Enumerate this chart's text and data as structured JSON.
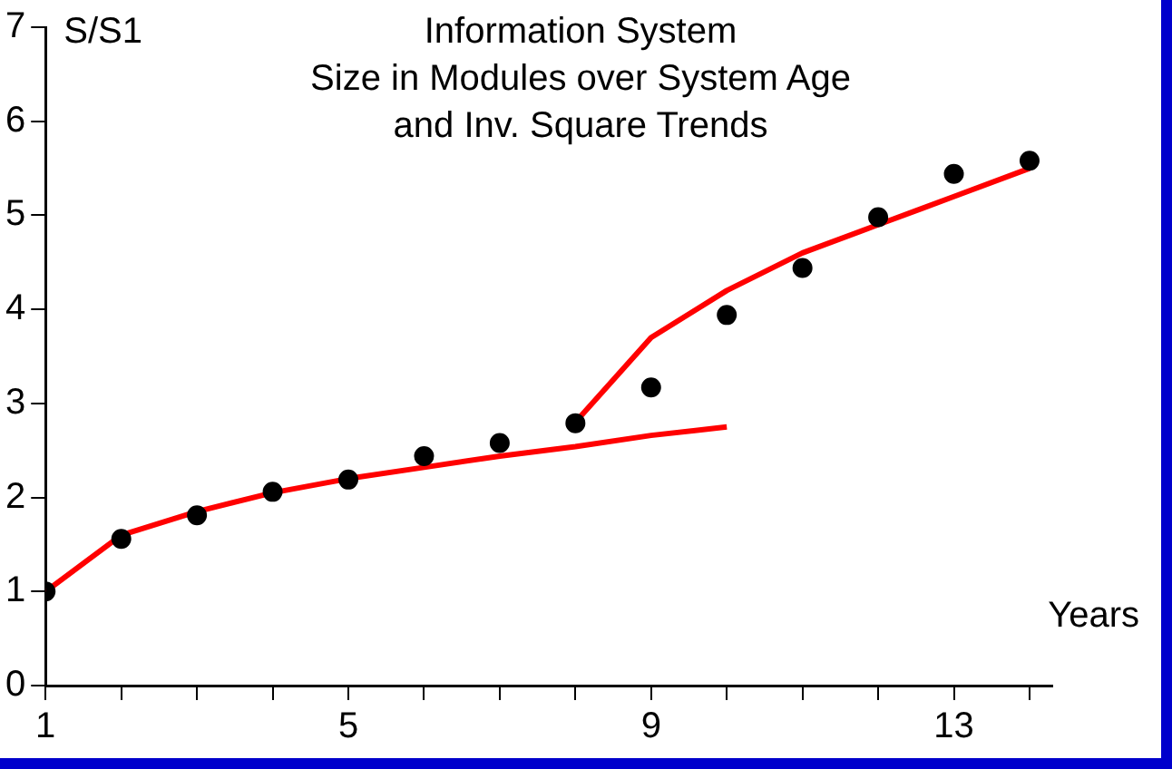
{
  "chart_data": {
    "type": "scatter",
    "title": "Information System\nSize in Modules over System Age\nand Inv. Square Trends",
    "ylabel": "S/S1",
    "xlabel": "Years",
    "xlim": [
      1,
      14.3
    ],
    "xticks": [
      1,
      {
        "value": 2,
        "label": null
      },
      {
        "value": 3,
        "label": null
      },
      {
        "value": 4,
        "label": null
      },
      5,
      {
        "value": 6,
        "label": null
      },
      {
        "value": 7,
        "label": null
      },
      {
        "value": 8,
        "label": null
      },
      9,
      {
        "value": 10,
        "label": null
      },
      {
        "value": 11,
        "label": null
      },
      {
        "value": 12,
        "label": null
      },
      13,
      {
        "value": 14,
        "label": null
      }
    ],
    "ylim": [
      0,
      7
    ],
    "yticks": [
      0,
      1,
      2,
      3,
      4,
      5,
      6,
      7
    ],
    "grid": false,
    "legend": false,
    "series": [
      {
        "type": "scatter",
        "color": "#000000",
        "marker": "circle",
        "x": [
          1,
          2,
          3,
          4,
          5,
          6,
          7,
          8,
          9,
          10,
          11,
          12,
          13,
          14
        ],
        "values": [
          1.0,
          1.56,
          1.81,
          2.06,
          2.19,
          2.44,
          2.58,
          2.79,
          3.17,
          3.94,
          4.44,
          4.98,
          5.44,
          5.58
        ]
      },
      {
        "type": "line",
        "color": "#ff0000",
        "marker": "none",
        "line_style": "solid",
        "x": [
          1,
          2,
          3,
          4,
          5,
          6,
          7,
          8,
          9,
          10
        ],
        "values": [
          1.0,
          1.6,
          1.85,
          2.05,
          2.2,
          2.32,
          2.44,
          2.54,
          2.66,
          2.75
        ]
      },
      {
        "type": "line",
        "color": "#ff0000",
        "marker": "none",
        "line_style": "solid",
        "x": [
          8,
          9,
          10,
          11,
          12,
          13,
          14
        ],
        "values": [
          2.8,
          3.7,
          4.2,
          4.6,
          4.9,
          5.2,
          5.5
        ]
      }
    ]
  }
}
